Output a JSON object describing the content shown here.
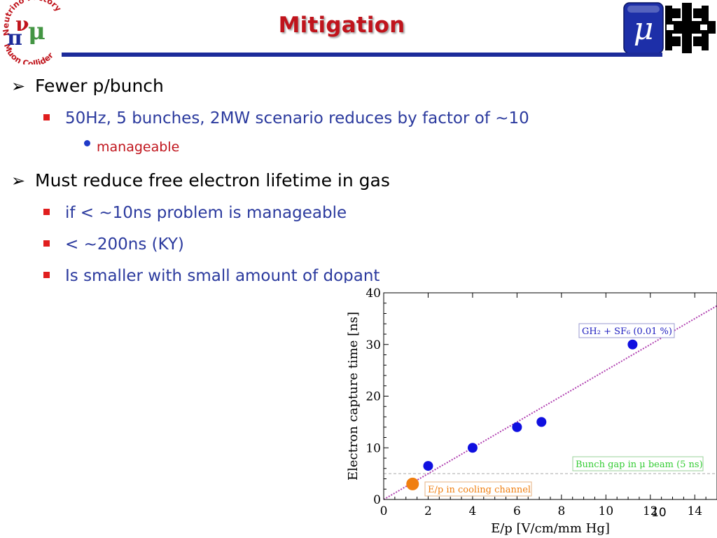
{
  "slide": {
    "title": "Mitigation",
    "page_number": "10",
    "colors": {
      "title": "#c0141c",
      "rule": "#1c2b9a",
      "level2_text": "#2b3a9e",
      "level3_text": "#c0141c",
      "square_bullet": "#e01e1e"
    }
  },
  "logos": {
    "left": {
      "name": "neutrino-factory-muon-collider-logo",
      "top_arc": "Neutrino Factory",
      "bottom_arc": "Muon Collider"
    },
    "right": {
      "name": "muon-fermilab-logo",
      "symbol": "μ"
    }
  },
  "bullets": [
    {
      "text": "Fewer p/bunch"
    },
    {
      "text": "50Hz, 5 bunches, 2MW scenario reduces by factor of ~10"
    },
    {
      "text": "manageable"
    },
    {
      "text": "Must reduce free electron lifetime in gas"
    },
    {
      "text": "if < ~10ns problem is manageable"
    },
    {
      "text": "< ~200ns (KY)"
    },
    {
      "text": "Is smaller with small amount of dopant"
    }
  ],
  "chart_data": {
    "type": "scatter",
    "xlabel": "E/p [V/cm/mm Hg]",
    "ylabel": "Electron capture time [ns]",
    "xlim": [
      0,
      15
    ],
    "ylim": [
      0,
      40
    ],
    "x_ticks": [
      0,
      2,
      4,
      6,
      8,
      10,
      12,
      14
    ],
    "y_ticks": [
      0,
      10,
      20,
      30,
      40
    ],
    "series": [
      {
        "name": "GH2 + SF6 (0.01 %)",
        "color": "#1010e0",
        "points": [
          [
            2.0,
            6.5
          ],
          [
            4.0,
            10.0
          ],
          [
            6.0,
            14.0
          ],
          [
            7.1,
            15.0
          ],
          [
            11.2,
            30.0
          ]
        ]
      },
      {
        "name": "E/p in cooling channel",
        "color": "#f07f10",
        "points": [
          [
            1.3,
            3.0
          ]
        ]
      }
    ],
    "fit_line": {
      "color": "#b040b0",
      "points": [
        [
          0.0,
          0.0
        ],
        [
          15.0,
          37.5
        ]
      ]
    },
    "reference_line": {
      "label": "Bunch gap in μ beam (5 ns)",
      "y": 5,
      "color": "#33cc33"
    },
    "annotations": {
      "gh2_label": "GH₂ + SF₆ (0.01 %)",
      "gh2_color": "#2020c0",
      "gap_label": "Bunch gap in μ beam (5 ns)",
      "gap_color": "#33cc33",
      "cooling_label": "E/p in cooling channel",
      "cooling_color": "#f07f10"
    }
  }
}
